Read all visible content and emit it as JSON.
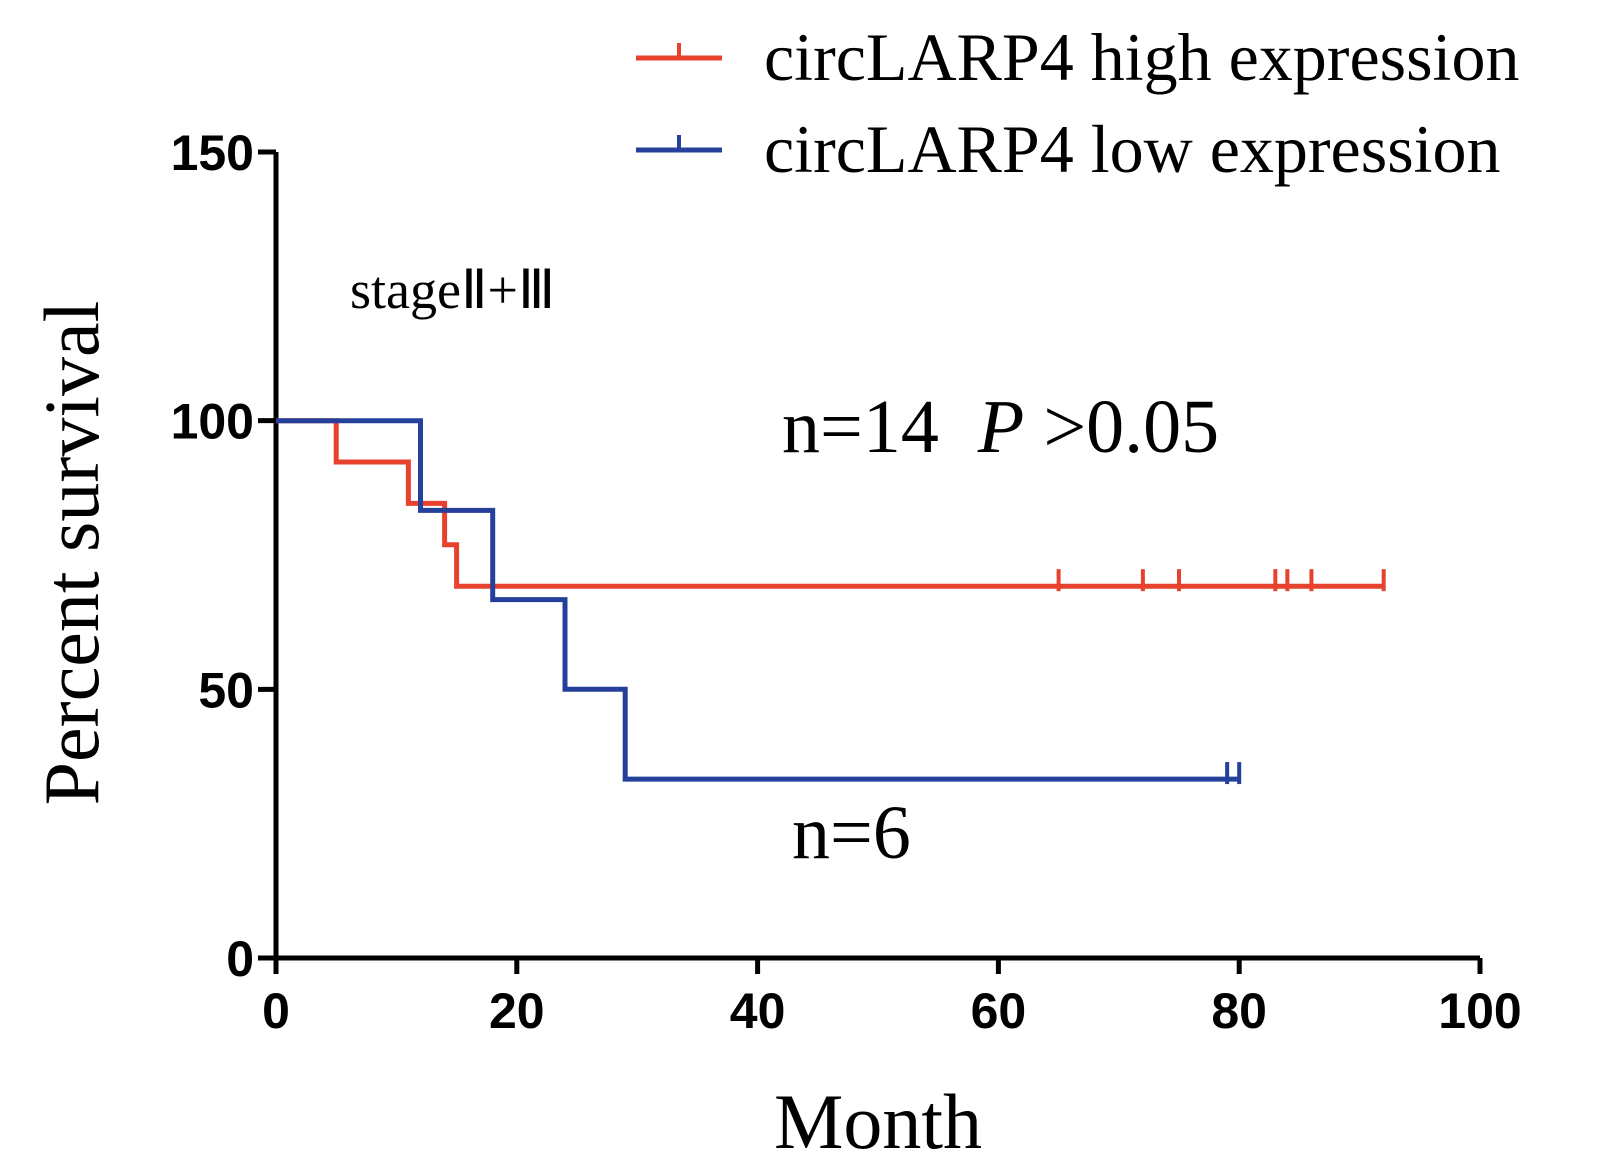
{
  "chart_data": {
    "type": "line",
    "title": "",
    "xlabel": "Month",
    "ylabel": "Percent survival",
    "xlim": [
      0,
      100
    ],
    "ylim": [
      0,
      150
    ],
    "xticks": [
      0,
      20,
      40,
      60,
      80,
      100
    ],
    "yticks": [
      0,
      50,
      100,
      150
    ],
    "xtick_labels": [
      "0",
      "20",
      "40",
      "60",
      "80",
      "100"
    ],
    "ytick_labels": [
      "0",
      "50",
      "100",
      "150"
    ],
    "grid": false,
    "legend_position": "top-right",
    "series": [
      {
        "name": "circLARP4 high expression",
        "color": "#e8412e",
        "step": [
          [
            0,
            100
          ],
          [
            5,
            100
          ],
          [
            5,
            92.3
          ],
          [
            11,
            92.3
          ],
          [
            11,
            84.6
          ],
          [
            14,
            84.6
          ],
          [
            14,
            76.9
          ],
          [
            15,
            76.9
          ],
          [
            15,
            69.2
          ],
          [
            92,
            69.2
          ]
        ],
        "censored": [
          [
            65,
            69.2
          ],
          [
            72,
            69.2
          ],
          [
            75,
            69.2
          ],
          [
            83,
            69.2
          ],
          [
            84,
            69.2
          ],
          [
            86,
            69.2
          ],
          [
            92,
            69.2
          ]
        ]
      },
      {
        "name": "circLARP4 low expression",
        "color": "#25409b",
        "step": [
          [
            0,
            100
          ],
          [
            12,
            100
          ],
          [
            12,
            83.3
          ],
          [
            18,
            83.3
          ],
          [
            18,
            66.7
          ],
          [
            24,
            66.7
          ],
          [
            24,
            50
          ],
          [
            29,
            50
          ],
          [
            29,
            33.3
          ],
          [
            80,
            33.3
          ]
        ],
        "censored": [
          [
            79,
            33.3
          ],
          [
            80,
            33.3
          ]
        ]
      }
    ],
    "annotations": {
      "stage": "stageⅡ+Ⅲ",
      "n_high": "n=14",
      "p_italic": "P",
      "p_value": ">0.05",
      "n_low": "n=6"
    }
  }
}
